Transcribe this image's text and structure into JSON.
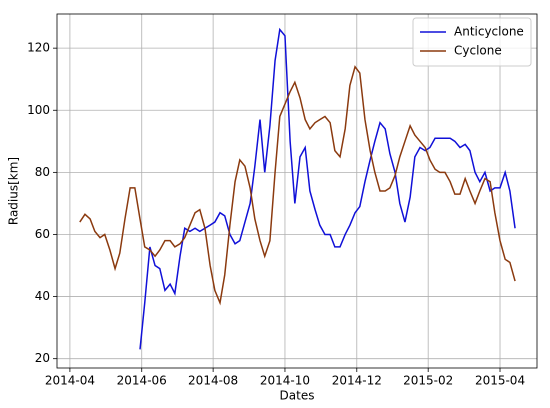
{
  "chart_data": {
    "type": "line",
    "xlabel": "Dates",
    "ylabel": "Radius[km]",
    "x": [
      2014.273,
      2014.285,
      2014.297,
      2014.308,
      2014.32,
      2014.331,
      2014.343,
      2014.355,
      2014.366,
      2014.378,
      2014.39,
      2014.401,
      2014.413,
      2014.424,
      2014.436,
      2014.448,
      2014.459,
      2014.471,
      2014.483,
      2014.494,
      2014.506,
      2014.517,
      2014.529,
      2014.541,
      2014.552,
      2014.564,
      2014.576,
      2014.587,
      2014.599,
      2014.61,
      2014.622,
      2014.634,
      2014.645,
      2014.657,
      2014.669,
      2014.68,
      2014.692,
      2014.703,
      2014.715,
      2014.727,
      2014.738,
      2014.75,
      2014.762,
      2014.773,
      2014.785,
      2014.797,
      2014.808,
      2014.82,
      2014.831,
      2014.843,
      2014.855,
      2014.866,
      2014.878,
      2014.89,
      2014.901,
      2014.913,
      2014.924,
      2014.936,
      2014.948,
      2014.959,
      2014.971,
      2014.983,
      2014.994,
      2015.006,
      2015.017,
      2015.029,
      2015.041,
      2015.052,
      2015.064,
      2015.076,
      2015.087,
      2015.099,
      2015.11,
      2015.122,
      2015.134,
      2015.145,
      2015.157,
      2015.169,
      2015.18,
      2015.192,
      2015.203,
      2015.215,
      2015.227,
      2015.238,
      2015.25,
      2015.262,
      2015.273,
      2015.285
    ],
    "series": [
      {
        "name": "Anticyclone",
        "color": "#1010d8",
        "values": [
          null,
          null,
          null,
          null,
          null,
          null,
          null,
          null,
          null,
          null,
          null,
          null,
          23,
          38,
          56,
          50,
          49,
          42,
          44,
          41,
          53,
          62,
          61,
          62,
          61,
          62,
          63,
          64,
          67,
          66,
          60,
          57,
          58,
          64,
          70,
          82,
          97,
          80,
          95,
          116,
          126,
          124,
          90,
          70,
          85,
          88,
          74,
          68,
          63,
          60,
          60,
          56,
          56,
          60,
          63,
          67,
          69,
          77,
          84,
          90,
          96,
          94,
          86,
          80,
          70,
          64,
          72,
          85,
          88,
          87,
          88,
          91,
          91,
          91,
          91,
          90,
          88,
          89,
          87,
          80,
          77,
          80,
          74,
          75,
          75,
          80,
          74,
          62
        ]
      },
      {
        "name": "Cyclone",
        "color": "#8b3a0f",
        "values": [
          64,
          66.5,
          65,
          61,
          59,
          60,
          55,
          49,
          54,
          65,
          75,
          75,
          65,
          56,
          55,
          53,
          55,
          58,
          58,
          56,
          57,
          59,
          63,
          67,
          68,
          62,
          50,
          42,
          38,
          47,
          63,
          77,
          84,
          82,
          75,
          65,
          58,
          53,
          58,
          80,
          98,
          102,
          106,
          109,
          104,
          97,
          94,
          96,
          97,
          98,
          96,
          87,
          85,
          94,
          108,
          114,
          112,
          97,
          87,
          80,
          74,
          74,
          75,
          79,
          85,
          90,
          95,
          92,
          90,
          88,
          84,
          81,
          80,
          80,
          77,
          73,
          73,
          78,
          74,
          70,
          74,
          78,
          77,
          67,
          58,
          52,
          51,
          45
        ]
      }
    ],
    "xlim": [
      2014.22,
      2015.336
    ],
    "xticks": [
      {
        "value": 2014.25,
        "label": "2014-04"
      },
      {
        "value": 2014.417,
        "label": "2014-06"
      },
      {
        "value": 2014.583,
        "label": "2014-08"
      },
      {
        "value": 2014.75,
        "label": "2014-10"
      },
      {
        "value": 2014.917,
        "label": "2014-12"
      },
      {
        "value": 2015.083,
        "label": "2015-02"
      },
      {
        "value": 2015.25,
        "label": "2015-04"
      }
    ],
    "ylim": [
      17,
      131
    ],
    "yticks": [
      20,
      40,
      60,
      80,
      100,
      120
    ],
    "grid": true,
    "legend": "upper right"
  }
}
